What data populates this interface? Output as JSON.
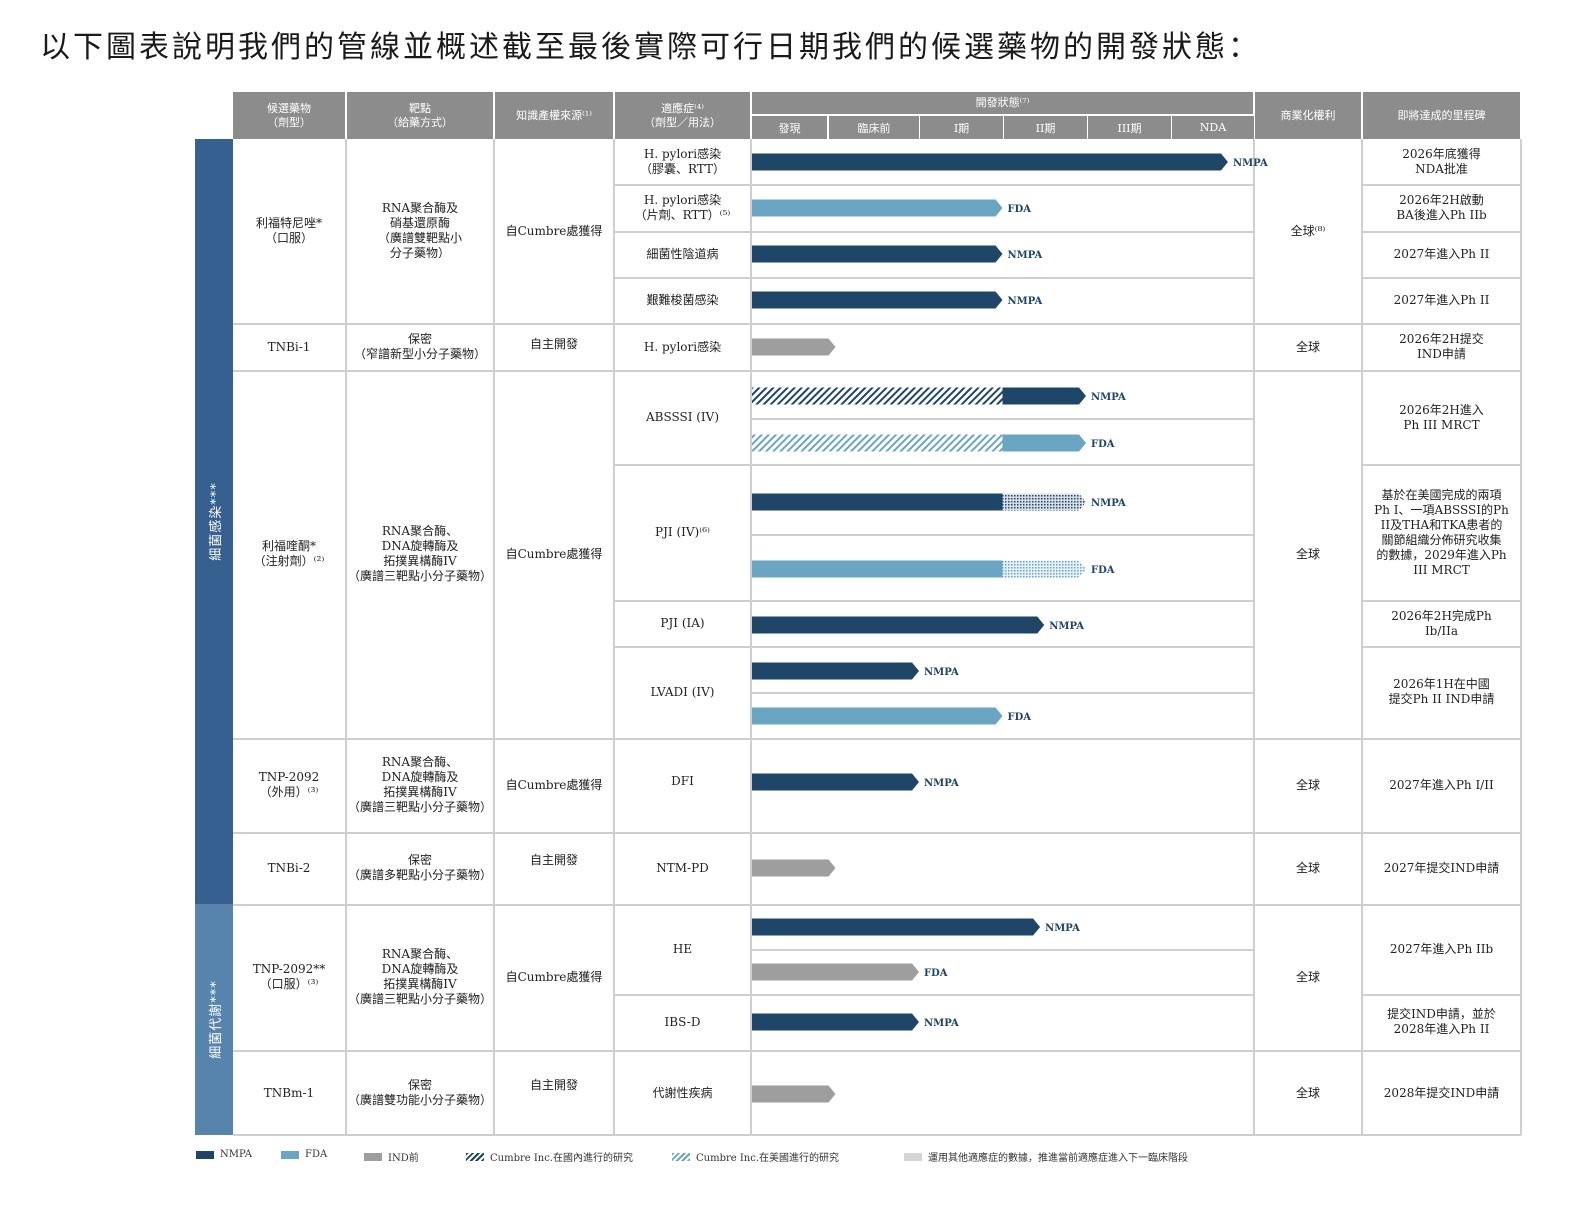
{
  "title": "以下圖表說明我們的管線並概述截至最後實際可行日期我們的候選藥物的開發狀態：",
  "headers": {
    "candidate": "候選藥物\n（劑型）",
    "target": "靶點\n（給藥方式）",
    "ip_source": "知識產權來源⁽¹⁾",
    "indication": "適應症⁽⁴⁾\n（劑型／用法）",
    "dev_status": "開發狀態⁽⁷⁾",
    "commercial": "商業化權利",
    "milestone": "即將達成的里程碑"
  },
  "stages": [
    "發現",
    "臨床前",
    "I期",
    "II期",
    "III期",
    "NDA"
  ],
  "side_labels": [
    "細菌感染***",
    "細菌代謝***"
  ],
  "candidates": [
    {
      "name": "利福特尼唑*\n（口服）",
      "target": "RNA聚合酶及\n硝基還原酶\n（廣譜雙靶點小\n分子藥物）",
      "ip": "自Cumbre處獲得",
      "rights": "全球⁽⁸⁾"
    },
    {
      "name": "TNBi-1",
      "target": "保密\n（窄譜新型小分子藥物）",
      "ip": "自主開發",
      "rights": "全球"
    },
    {
      "name": "利福喹酮*\n（注射劑）⁽²⁾",
      "target": "RNA聚合酶、\nDNA旋轉酶及\n拓撲異構酶IV\n（廣譜三靶點小分子藥物）",
      "ip": "自Cumbre處獲得",
      "rights": "全球"
    },
    {
      "name": "TNP-2092\n（外用）⁽³⁾",
      "target": "RNA聚合酶、\nDNA旋轉酶及\n拓撲異構酶IV\n（廣譜三靶點小分子藥物）",
      "ip": "自Cumbre處獲得",
      "rights": "全球"
    },
    {
      "name": "TNBi-2",
      "target": "保密\n（廣譜多靶點小分子藥物）",
      "ip": "自主開發",
      "rights": "全球"
    },
    {
      "name": "TNP-2092**\n（口服）⁽³⁾",
      "target": "RNA聚合酶、\nDNA旋轉酶及\n拓撲異構酶IV\n（廣譜三靶點小分子藥物）",
      "ip": "自Cumbre處獲得",
      "rights": "全球"
    },
    {
      "name": "TNBm-1",
      "target": "保密\n（廣譜雙功能小分子藥物）",
      "ip": "自主開發",
      "rights": "全球"
    }
  ],
  "indications": [
    "H. pylori感染\n（膠囊、RTT）",
    "H. pylori感染\n（片劑、RTT）⁽⁵⁾",
    "細菌性陰道病",
    "艱難梭菌感染",
    "H. pylori感染",
    "ABSSSI (IV)",
    "PJI (IV)⁽⁶⁾",
    "PJI (IA)",
    "LVADI (IV)",
    "DFI",
    "NTM-PD",
    "HE",
    "IBS-D",
    "代謝性疾病"
  ],
  "milestones": [
    "2026年底獲得\nNDA批准",
    "2026年2H啟動\nBA後進入Ph IIb",
    "2027年進入Ph II",
    "2027年進入Ph II",
    "2026年2H提交\nIND申請",
    "2026年2H進入\nPh III MRCT",
    "基於在美國完成的兩項\nPh I、一項ABSSSI的Ph\nII及THA和TKA患者的\n關節組織分佈研究收集\n的數據，2029年進入Ph\nIII MRCT",
    "2026年2H完成Ph\nIb/IIa",
    "2026年1H在中國\n提交Ph II IND申請",
    "2027年進入Ph I/II",
    "2027年提交IND申請",
    "2027年進入Ph IIb",
    "提交IND申請，並於\n2028年進入Ph  II",
    "2028年提交IND申請"
  ],
  "legend": {
    "nmpa": "NMPA",
    "fda": "FDA",
    "pre_ind": "IND前",
    "cumbre_domestic": "Cumbre Inc.在國內進行的研究",
    "cumbre_us": "Cumbre Inc.在美國進行的研究",
    "other": "運用其他適應症的數據，推進當前適應症進入下一臨床階段"
  },
  "colors": {
    "nmpa": "#1f4569",
    "fda": "#6aa6c2",
    "pre_ind": "#9e9e9e",
    "side_top": "#36608f",
    "side_bottom": "#5684ad",
    "header": "#8c8c8c"
  },
  "chart_data": {
    "type": "bar",
    "title": "開發狀態",
    "stages": [
      "發現",
      "臨床前",
      "I期",
      "II期",
      "III期",
      "NDA"
    ],
    "note": "stage_end values are in stage units (0 = start of 發現, 6 = end of NDA)",
    "bars": [
      {
        "indication": "H. pylori感染（膠囊、RTT）",
        "type": "nmpa",
        "label": "NMPA",
        "hatch_end": 0,
        "end": 5.7
      },
      {
        "indication": "H. pylori感染（片劑、RTT）",
        "type": "fda",
        "label": "FDA",
        "hatch_end": 0,
        "end": 3.0
      },
      {
        "indication": "細菌性陰道病",
        "type": "nmpa",
        "label": "NMPA",
        "hatch_end": 0,
        "end": 3.0
      },
      {
        "indication": "艱難梭菌感染",
        "type": "nmpa",
        "label": "NMPA",
        "hatch_end": 0,
        "end": 3.0
      },
      {
        "indication": "H. pylori感染",
        "type": "pre_ind",
        "label": "",
        "hatch_end": 0,
        "end": 1.0
      },
      {
        "indication": "ABSSSI (IV)",
        "type": "nmpa",
        "label": "NMPA",
        "hatch_end": 3.0,
        "end": 4.0
      },
      {
        "indication": "ABSSSI (IV)",
        "type": "fda",
        "label": "FDA",
        "hatch_end": 3.0,
        "end": 4.0
      },
      {
        "indication": "PJI (IV)",
        "type": "nmpa",
        "label": "NMPA",
        "solid_end": 3.0,
        "dot_end": 4.0,
        "end": 4.0
      },
      {
        "indication": "PJI (IV)",
        "type": "fda",
        "label": "FDA",
        "solid_end": 3.0,
        "dot_end": 4.0,
        "end": 4.0
      },
      {
        "indication": "PJI (IA)",
        "type": "nmpa",
        "label": "NMPA",
        "hatch_end": 0,
        "end": 3.5
      },
      {
        "indication": "LVADI (IV)",
        "type": "nmpa",
        "label": "NMPA",
        "hatch_end": 0,
        "end": 2.0
      },
      {
        "indication": "LVADI (IV)",
        "type": "fda",
        "label": "FDA",
        "hatch_end": 0,
        "end": 3.0
      },
      {
        "indication": "DFI",
        "type": "nmpa",
        "label": "NMPA",
        "hatch_end": 0,
        "end": 2.0
      },
      {
        "indication": "NTM-PD",
        "type": "pre_ind",
        "label": "",
        "hatch_end": 0,
        "end": 1.0
      },
      {
        "indication": "HE",
        "type": "nmpa",
        "label": "NMPA",
        "hatch_end": 0,
        "end": 3.45
      },
      {
        "indication": "HE",
        "type": "pre_ind",
        "label": "FDA",
        "hatch_end": 0,
        "end": 2.0
      },
      {
        "indication": "IBS-D",
        "type": "nmpa",
        "label": "NMPA",
        "hatch_end": 0,
        "end": 2.0
      },
      {
        "indication": "代謝性疾病",
        "type": "pre_ind",
        "label": "",
        "hatch_end": 0,
        "end": 1.0
      }
    ]
  }
}
